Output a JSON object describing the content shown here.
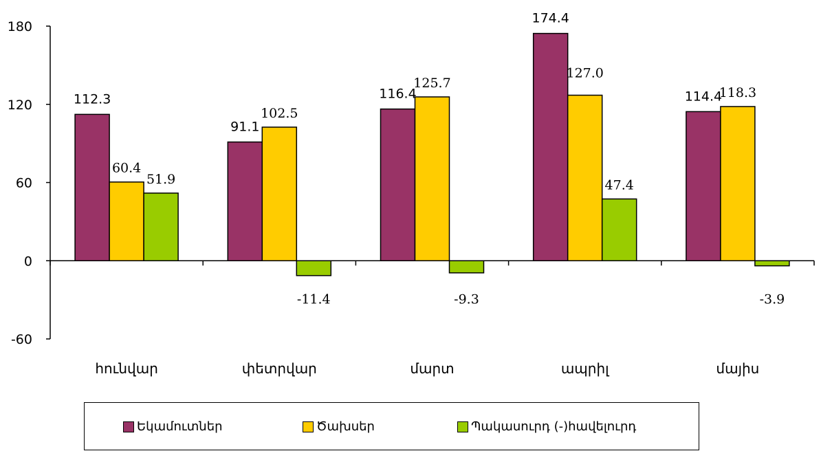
{
  "chart_data": {
    "type": "bar",
    "categories": [
      "հունվար",
      "փետրվար",
      "մարտ",
      "ապրիլ",
      "մայիս"
    ],
    "series": [
      {
        "name": "Եկամուտներ",
        "color": "#993366",
        "values": [
          112.3,
          91.1,
          116.4,
          174.4,
          114.4
        ],
        "labels": [
          "112.3",
          "91.1",
          "116.4",
          "174.4",
          "114.4"
        ]
      },
      {
        "name": "Ծախսեր",
        "color": "#FFCC00",
        "values": [
          60.4,
          102.5,
          125.7,
          127.0,
          118.3
        ],
        "labels": [
          "60.4",
          "102.5",
          "125.7",
          "127.0",
          "118.3"
        ]
      },
      {
        "name": "Պակասուրդ (-)հավելուրդ",
        "color": "#99CC00",
        "values": [
          51.9,
          -11.4,
          -9.3,
          47.4,
          -3.9
        ],
        "labels": [
          "51.9",
          "-11.4",
          "-9.3",
          "47.4",
          "-3.9"
        ]
      }
    ],
    "yticks": [
      "180",
      "120",
      "60",
      "0",
      "-60"
    ],
    "ylim": [
      -60,
      180
    ],
    "title": "",
    "xlabel": "",
    "ylabel": "",
    "legend_position": "bottom",
    "grid": false
  }
}
